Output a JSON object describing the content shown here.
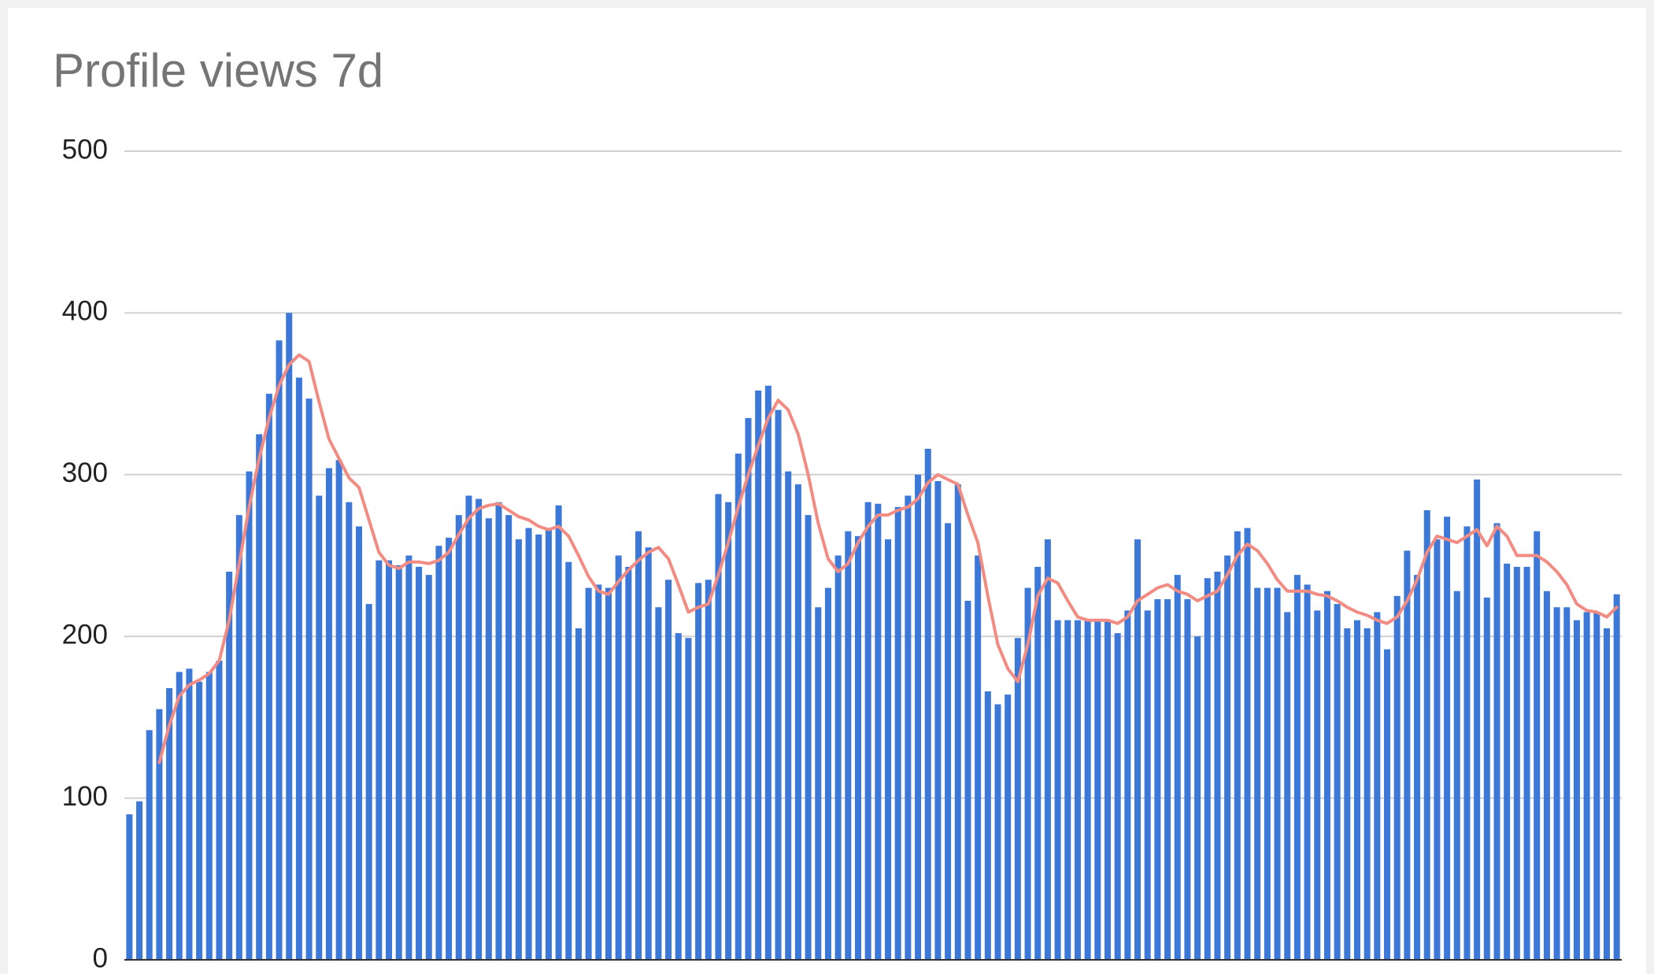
{
  "chart_data": {
    "type": "bar",
    "title": "Profile views 7d",
    "ylim": [
      0,
      500
    ],
    "yticks": [
      0,
      100,
      200,
      300,
      400,
      500
    ],
    "grid": true,
    "series": [
      {
        "type": "bar",
        "color": "#3c78d8",
        "values": [
          90,
          98,
          142,
          155,
          168,
          178,
          180,
          172,
          178,
          185,
          240,
          275,
          302,
          325,
          350,
          383,
          400,
          360,
          347,
          287,
          304,
          309,
          283,
          268,
          220,
          247,
          247,
          244,
          250,
          243,
          238,
          256,
          261,
          275,
          287,
          285,
          273,
          283,
          275,
          260,
          267,
          263,
          266,
          281,
          246,
          205,
          230,
          232,
          230,
          250,
          243,
          265,
          255,
          218,
          235,
          202,
          199,
          233,
          235,
          288,
          283,
          313,
          335,
          352,
          355,
          340,
          302,
          294,
          275,
          218,
          230,
          250,
          265,
          262,
          283,
          282,
          260,
          280,
          287,
          300,
          316,
          296,
          270,
          294,
          222,
          250,
          166,
          158,
          164,
          199,
          230,
          243,
          260,
          210,
          210,
          210,
          210,
          210,
          210,
          202,
          216,
          260,
          216,
          223,
          223,
          238,
          223,
          200,
          236,
          240,
          250,
          265,
          267,
          230,
          230,
          230,
          215,
          238,
          232,
          216,
          228,
          220,
          205,
          210,
          205,
          215,
          192,
          225,
          253,
          238,
          278,
          260,
          274,
          228,
          268,
          297,
          224,
          270,
          245,
          243,
          243,
          265,
          228,
          218,
          218,
          210,
          215,
          215,
          205,
          226
        ]
      },
      {
        "type": "line",
        "color": "#f28b82",
        "values": [
          null,
          null,
          null,
          122,
          145,
          163,
          170,
          173,
          177,
          185,
          210,
          245,
          280,
          310,
          335,
          355,
          368,
          374,
          370,
          345,
          322,
          310,
          298,
          292,
          272,
          252,
          244,
          242,
          246,
          246,
          245,
          247,
          252,
          263,
          273,
          279,
          281,
          282,
          278,
          274,
          272,
          268,
          266,
          268,
          262,
          250,
          237,
          228,
          226,
          234,
          241,
          247,
          252,
          255,
          248,
          232,
          215,
          218,
          220,
          238,
          258,
          280,
          300,
          318,
          335,
          346,
          340,
          325,
          300,
          270,
          248,
          240,
          245,
          258,
          268,
          275,
          275,
          278,
          280,
          285,
          295,
          300,
          297,
          294,
          275,
          258,
          225,
          195,
          180,
          172,
          195,
          225,
          236,
          233,
          222,
          212,
          210,
          210,
          210,
          208,
          212,
          222,
          226,
          230,
          232,
          228,
          226,
          222,
          225,
          228,
          238,
          250,
          257,
          253,
          245,
          235,
          228,
          228,
          228,
          226,
          225,
          222,
          218,
          215,
          213,
          210,
          208,
          212,
          222,
          235,
          252,
          262,
          260,
          258,
          262,
          266,
          256,
          268,
          262,
          250,
          250,
          250,
          246,
          240,
          232,
          220,
          216,
          215,
          212,
          218
        ]
      }
    ]
  }
}
